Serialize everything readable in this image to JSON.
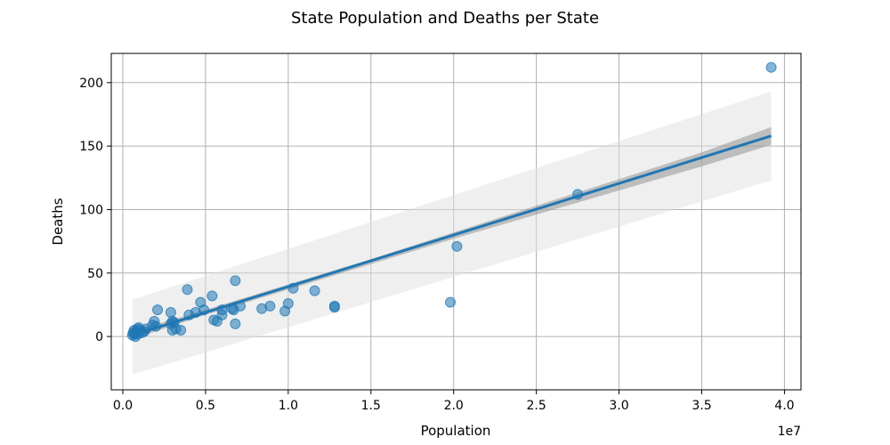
{
  "chart_data": {
    "type": "scatter",
    "title": "State Population and Deaths per State",
    "xlabel": "Population",
    "ylabel": "Deaths",
    "x_scale_label": "1e7",
    "xlim": [
      -0.07,
      4.1
    ],
    "ylim": [
      -42,
      223
    ],
    "x_ticks": [
      0.0,
      0.5,
      1.0,
      1.5,
      2.0,
      2.5,
      3.0,
      3.5,
      4.0
    ],
    "x_tick_labels": [
      "0.0",
      "0.5",
      "1.0",
      "1.5",
      "2.0",
      "2.5",
      "3.0",
      "3.5",
      "4.0"
    ],
    "y_ticks": [
      0,
      50,
      100,
      150,
      200
    ],
    "y_tick_labels": [
      "0",
      "50",
      "100",
      "150",
      "200"
    ],
    "grid": true,
    "colors": {
      "points": "#1f77b4",
      "line": "#1f77b4",
      "ci_band": "#808080",
      "pi_band": "#e0e0e0",
      "grid": "#b0b0b0"
    },
    "series": [
      {
        "points": [
          [
            0.058,
            1
          ],
          [
            0.062,
            3
          ],
          [
            0.068,
            5
          ],
          [
            0.071,
            2
          ],
          [
            0.076,
            0
          ],
          [
            0.079,
            4
          ],
          [
            0.088,
            6
          ],
          [
            0.092,
            2
          ],
          [
            0.096,
            7
          ],
          [
            0.105,
            5
          ],
          [
            0.115,
            3
          ],
          [
            0.13,
            4
          ],
          [
            0.14,
            6
          ],
          [
            0.18,
            9
          ],
          [
            0.19,
            12
          ],
          [
            0.2,
            8
          ],
          [
            0.21,
            21
          ],
          [
            0.29,
            19
          ],
          [
            0.29,
            10
          ],
          [
            0.3,
            12
          ],
          [
            0.3,
            5
          ],
          [
            0.31,
            11
          ],
          [
            0.32,
            6
          ],
          [
            0.35,
            5
          ],
          [
            0.39,
            37
          ],
          [
            0.4,
            17
          ],
          [
            0.44,
            19
          ],
          [
            0.47,
            27
          ],
          [
            0.49,
            21
          ],
          [
            0.54,
            32
          ],
          [
            0.55,
            13
          ],
          [
            0.57,
            12
          ],
          [
            0.6,
            17
          ],
          [
            0.6,
            21
          ],
          [
            0.66,
            22
          ],
          [
            0.67,
            21
          ],
          [
            0.68,
            10
          ],
          [
            0.68,
            44
          ],
          [
            0.71,
            24
          ],
          [
            0.84,
            22
          ],
          [
            0.89,
            24
          ],
          [
            0.98,
            20
          ],
          [
            1.0,
            26
          ],
          [
            1.03,
            38
          ],
          [
            1.16,
            36
          ],
          [
            1.28,
            24
          ],
          [
            1.28,
            23
          ],
          [
            1.98,
            27
          ],
          [
            2.02,
            71
          ],
          [
            2.75,
            112
          ],
          [
            3.92,
            212
          ]
        ]
      }
    ],
    "regression": {
      "x": [
        0.058,
        3.92
      ],
      "y": [
        1,
        158
      ]
    },
    "confidence_band": {
      "x": [
        0.058,
        0.5,
        1.0,
        1.5,
        2.0,
        2.5,
        3.0,
        3.5,
        3.92
      ],
      "lower": [
        -2,
        17,
        37,
        57,
        77,
        96,
        115,
        134,
        151
      ],
      "upper": [
        4,
        21,
        41,
        61,
        82,
        103,
        124,
        145,
        165
      ]
    },
    "prediction_band": {
      "x": [
        0.058,
        3.92
      ],
      "lower": [
        -30,
        123
      ],
      "upper": [
        29,
        193
      ]
    }
  }
}
